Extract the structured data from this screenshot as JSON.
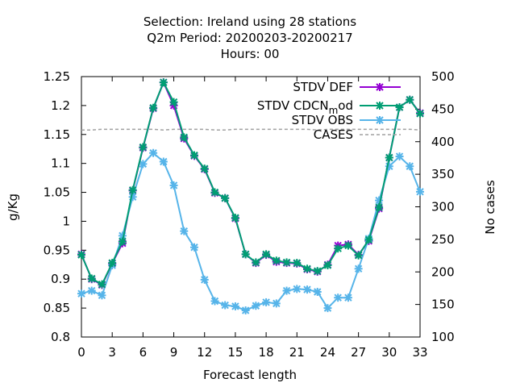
{
  "chart_data": {
    "type": "line",
    "title_lines": [
      "Selection: Ireland using    28 stations",
      "Q2m   Period: 20200203-20200217",
      "Hours:  00"
    ],
    "xlabel": "Forecast length",
    "ylabel": "g/Kg",
    "y2label": "No cases",
    "xlim": [
      0,
      33
    ],
    "ylim": [
      0.8,
      1.25
    ],
    "y2lim": [
      100,
      500
    ],
    "xticks": [
      "0",
      "3",
      "6",
      "9",
      "12",
      "15",
      "18",
      "21",
      "24",
      "27",
      "30",
      "33"
    ],
    "yticks": [
      "0.8",
      "0.85",
      "0.9",
      "0.95",
      "1",
      "1.05",
      "1.1",
      "1.15",
      "1.2",
      "1.25"
    ],
    "y2ticks": [
      "100",
      "150",
      "200",
      "250",
      "300",
      "350",
      "400",
      "450",
      "500"
    ],
    "legend_position": "top-right",
    "grid": false,
    "x": [
      0,
      1,
      2,
      3,
      4,
      5,
      6,
      7,
      8,
      9,
      10,
      11,
      12,
      13,
      14,
      15,
      16,
      17,
      18,
      19,
      20,
      21,
      22,
      23,
      24,
      25,
      26,
      27,
      28,
      29,
      30,
      31,
      32,
      33
    ],
    "series": [
      {
        "name": "STDV DEF",
        "label_parts": [
          {
            "text": "STDV DEF",
            "sub": false
          }
        ],
        "color": "#9400d3",
        "axis": "y",
        "marker": "x",
        "values": [
          0.943,
          0.9,
          0.89,
          0.927,
          0.962,
          1.053,
          1.127,
          1.195,
          1.24,
          1.2,
          1.143,
          1.113,
          1.09,
          1.049,
          1.04,
          1.005,
          0.943,
          0.928,
          0.942,
          0.93,
          0.928,
          0.927,
          0.917,
          0.913,
          0.925,
          0.958,
          0.96,
          0.942,
          0.966,
          1.022,
          1.11,
          1.197,
          1.21,
          1.187
        ]
      },
      {
        "name": "STDV CDCN_mod",
        "label_parts": [
          {
            "text": "STDV CDCN",
            "sub": false
          },
          {
            "text": "m",
            "sub": true
          },
          {
            "text": "od",
            "sub": false
          }
        ],
        "color": "#009e73",
        "axis": "y",
        "marker": "x",
        "values": [
          0.942,
          0.901,
          0.891,
          0.928,
          0.965,
          1.054,
          1.128,
          1.196,
          1.24,
          1.206,
          1.145,
          1.114,
          1.091,
          1.05,
          1.04,
          1.006,
          0.943,
          0.929,
          0.943,
          0.932,
          0.929,
          0.928,
          0.918,
          0.914,
          0.924,
          0.953,
          0.958,
          0.941,
          0.968,
          1.024,
          1.11,
          1.197,
          1.21,
          1.186
        ]
      },
      {
        "name": "STDV OBS",
        "label_parts": [
          {
            "text": "STDV OBS",
            "sub": false
          }
        ],
        "color": "#56b4e9",
        "axis": "y",
        "marker": "x",
        "values": [
          0.875,
          0.88,
          0.872,
          0.924,
          0.975,
          1.042,
          1.099,
          1.118,
          1.103,
          1.062,
          0.983,
          0.955,
          0.899,
          0.862,
          0.855,
          0.853,
          0.846,
          0.854,
          0.86,
          0.858,
          0.88,
          0.883,
          0.882,
          0.878,
          0.85,
          0.868,
          0.868,
          0.918,
          0.97,
          1.036,
          1.095,
          1.112,
          1.095,
          1.051
        ]
      },
      {
        "name": "CASES",
        "label_parts": [
          {
            "text": "CASES",
            "sub": false
          }
        ],
        "color": "#a0a0a0",
        "axis": "y2",
        "marker": "none",
        "dashed": true,
        "values": [
          418,
          418,
          419,
          419,
          419,
          419,
          419,
          419,
          418,
          419,
          419,
          419,
          419,
          418,
          418,
          419,
          419,
          419,
          419,
          419,
          419,
          419,
          419,
          418,
          419,
          419,
          419,
          419,
          419,
          419,
          419,
          419,
          419,
          418
        ]
      }
    ]
  }
}
